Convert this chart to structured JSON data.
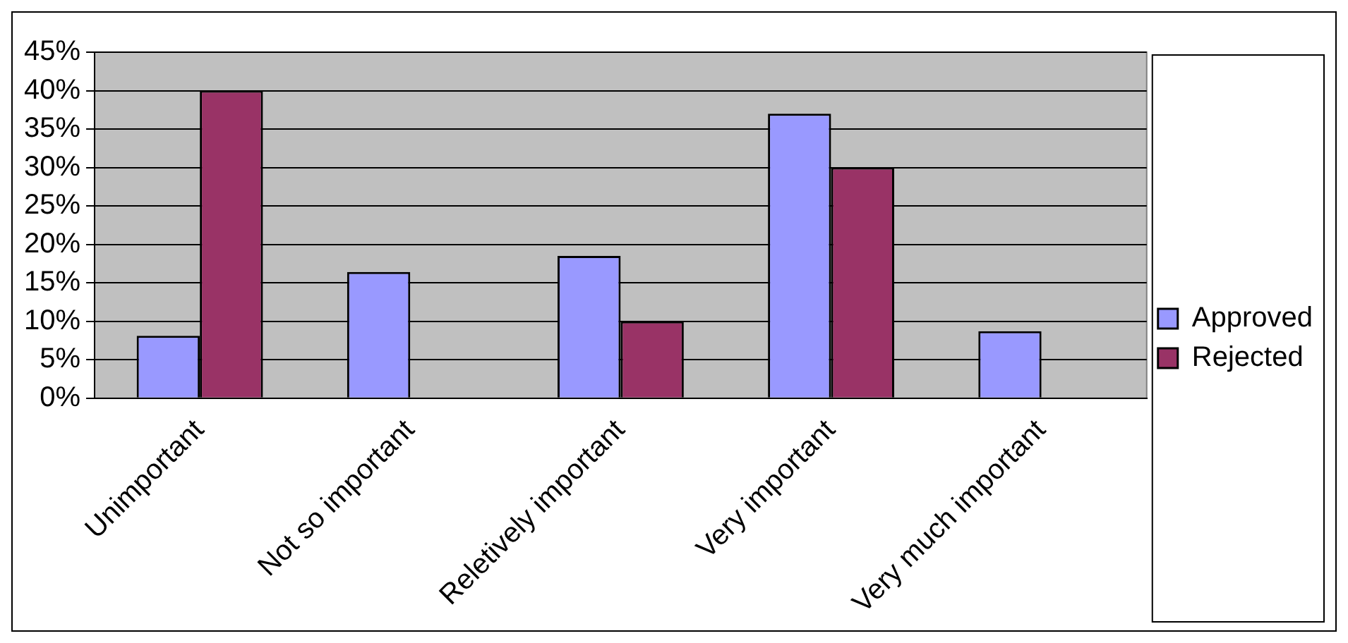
{
  "chart_data": {
    "type": "bar",
    "categories": [
      "Unimportant",
      "Not so important",
      "Reletively important",
      "Very important",
      "Very much important"
    ],
    "series": [
      {
        "name": "Approved",
        "color": "#9999ff",
        "values": [
          8.1,
          16.4,
          18.5,
          37,
          8.7
        ]
      },
      {
        "name": "Rejected",
        "color": "#993366",
        "values": [
          40,
          null,
          10,
          30,
          null
        ]
      }
    ],
    "ylim": [
      0,
      45
    ],
    "yticks": [
      {
        "value": 0,
        "label": "0%"
      },
      {
        "value": 5,
        "label": "5%"
      },
      {
        "value": 10,
        "label": "10%"
      },
      {
        "value": 15,
        "label": "15%"
      },
      {
        "value": 20,
        "label": "20%"
      },
      {
        "value": 25,
        "label": "25%"
      },
      {
        "value": 30,
        "label": "30%"
      },
      {
        "value": 35,
        "label": "35%"
      },
      {
        "value": 40,
        "label": "40%"
      },
      {
        "value": 45,
        "label": "45%"
      }
    ],
    "grid": "y",
    "legend": "right"
  }
}
